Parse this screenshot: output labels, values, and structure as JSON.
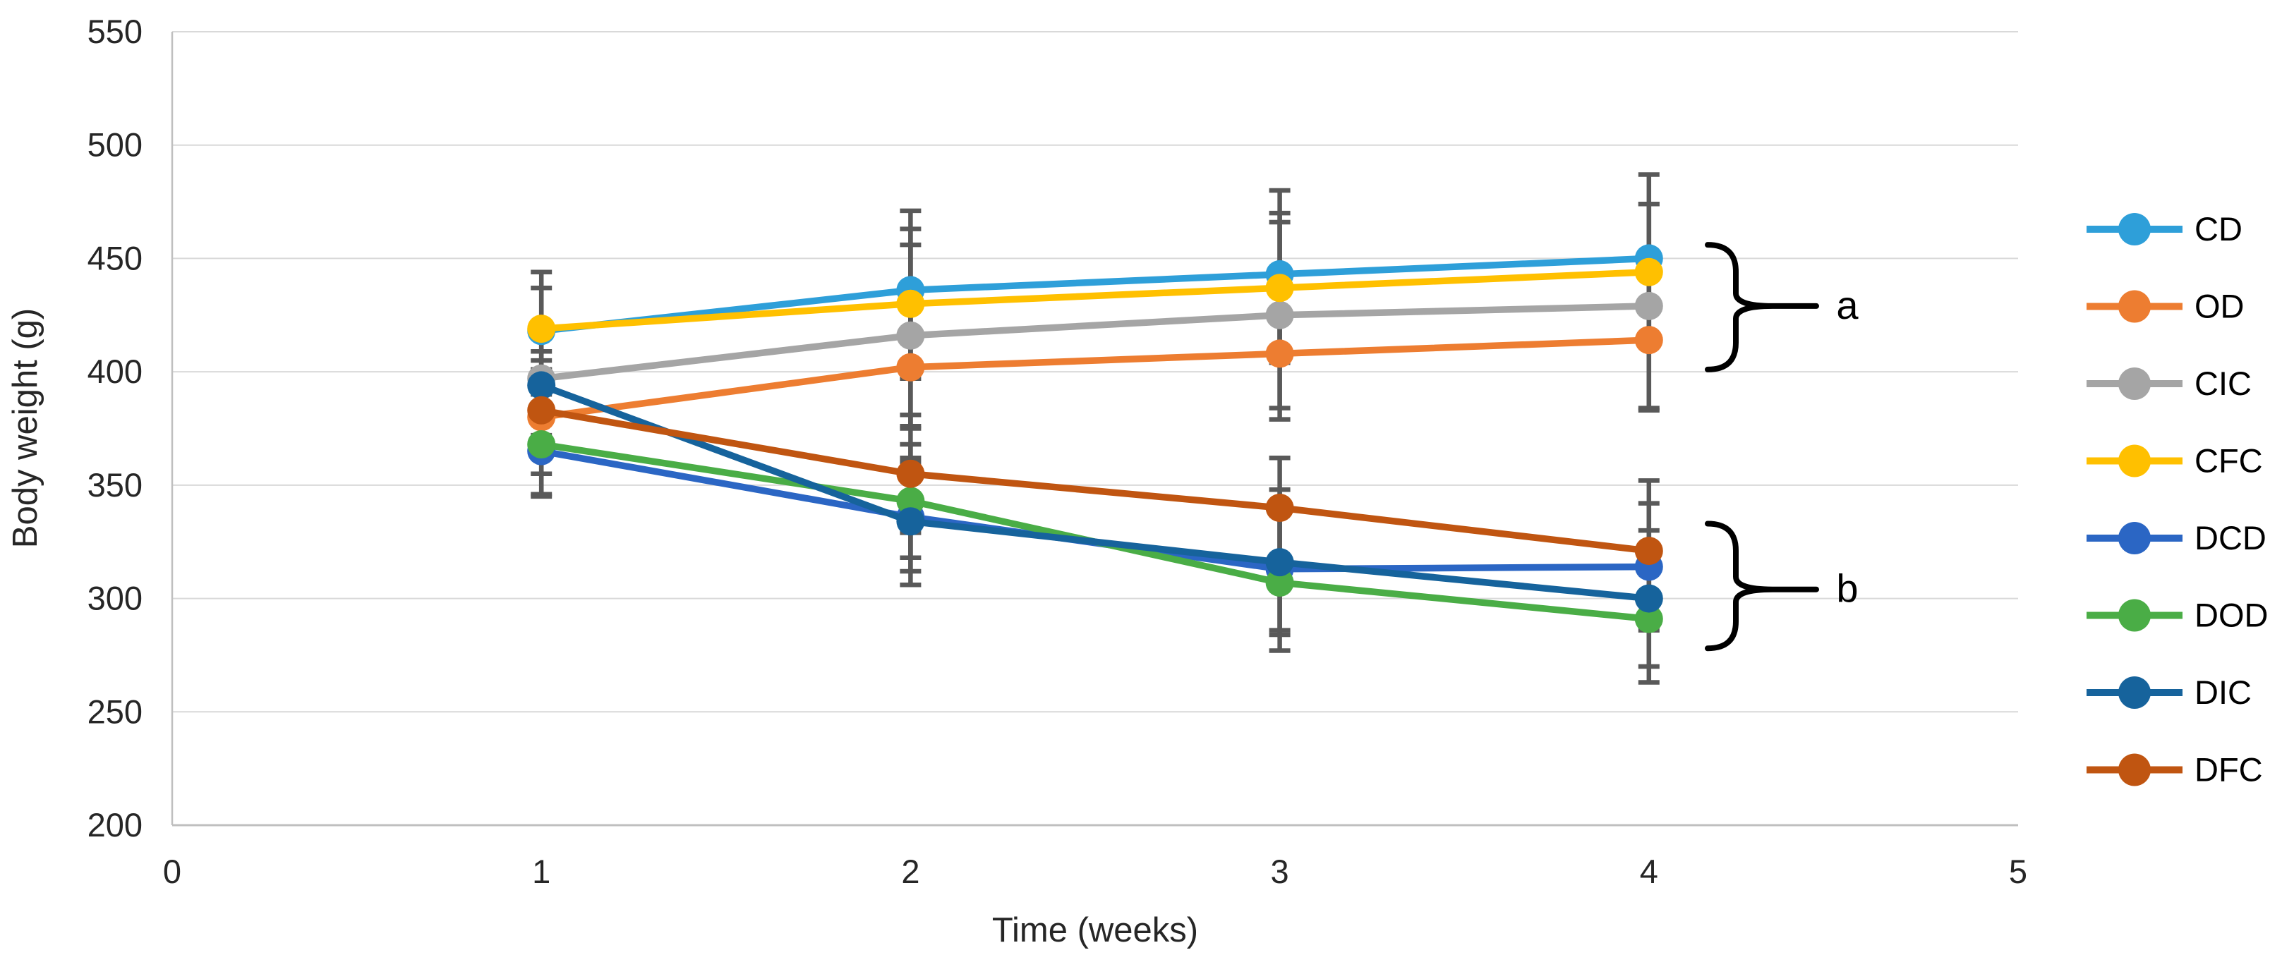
{
  "chart_data": {
    "type": "line",
    "title": "",
    "xlabel": "Time (weeks)",
    "ylabel": "Body weight (g)",
    "x": [
      1,
      2,
      3,
      4
    ],
    "xticks": [
      0,
      1,
      2,
      3,
      4,
      5
    ],
    "xlim": [
      0,
      5
    ],
    "ylim": [
      200,
      550
    ],
    "ytick_step": 50,
    "grid": true,
    "legend_position": "right",
    "series": [
      {
        "name": "CD",
        "color": "#2E9FD9",
        "values": [
          418,
          436,
          443,
          450
        ],
        "err": [
          26,
          35,
          37,
          37
        ]
      },
      {
        "name": "OD",
        "color": "#ED7D31",
        "values": [
          380,
          402,
          408,
          414
        ],
        "err": [
          25,
          27,
          29,
          31
        ]
      },
      {
        "name": "CIC",
        "color": "#A5A5A5",
        "values": [
          397,
          416,
          425,
          429
        ],
        "err": [
          12,
          40,
          41,
          45
        ]
      },
      {
        "name": "CFC",
        "color": "#FFC000",
        "values": [
          419,
          430,
          437,
          444
        ],
        "err": [
          18,
          33,
          33,
          30
        ]
      },
      {
        "name": "DCD",
        "color": "#2B66C4",
        "values": [
          365,
          336,
          313,
          314
        ],
        "err": [
          20,
          24,
          27,
          28
        ]
      },
      {
        "name": "DOD",
        "color": "#4AAD46",
        "values": [
          368,
          343,
          307,
          291
        ],
        "err": [
          22,
          25,
          30,
          28
        ]
      },
      {
        "name": "DIC",
        "color": "#16639C",
        "values": [
          394,
          334,
          316,
          300
        ],
        "err": [
          22,
          28,
          32,
          30
        ]
      },
      {
        "name": "DFC",
        "color": "#C05511",
        "values": [
          383,
          355,
          340,
          321
        ],
        "err": [
          18,
          26,
          22,
          31
        ]
      }
    ],
    "annotations": [
      {
        "label": "a",
        "brace_top_value": 456,
        "brace_bottom_value": 401,
        "tip_value": 429
      },
      {
        "label": "b",
        "brace_top_value": 333,
        "brace_bottom_value": 278,
        "tip_value": 304
      }
    ],
    "colors": {
      "error_bar": "#595959",
      "gridline": "#D9D9D9",
      "axis_line": "#BFBFBF",
      "text": "#262626",
      "annotation": "#000000"
    }
  }
}
